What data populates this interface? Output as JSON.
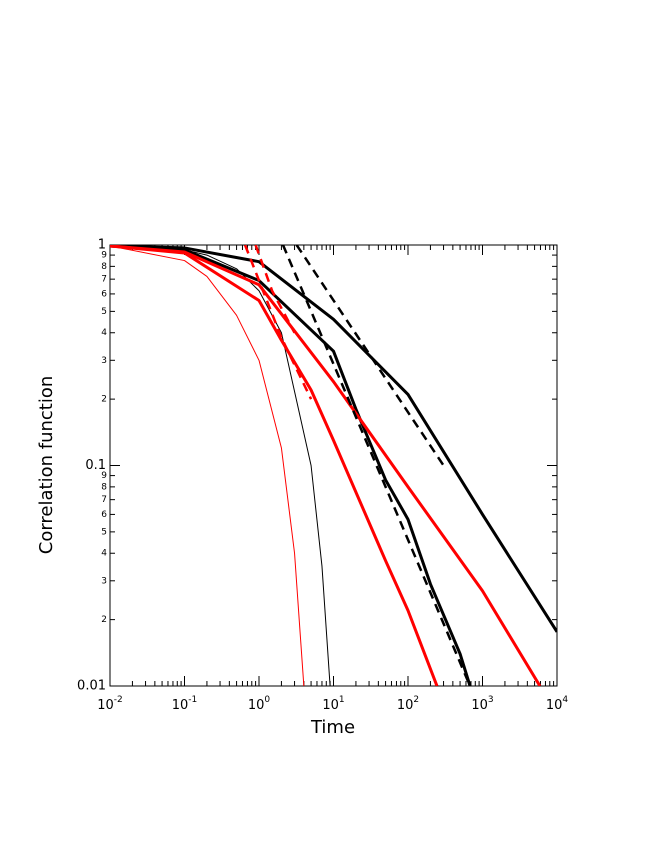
{
  "chart_data": {
    "type": "line",
    "x_label": "Time",
    "y_label": "Correlation function",
    "log_x": true,
    "log_y": true,
    "xlim": [
      0.01,
      10000
    ],
    "ylim": [
      0.01,
      1
    ],
    "xticks": [
      {
        "value": 0.01,
        "label": "10",
        "exponent": "-2"
      },
      {
        "value": 0.1,
        "label": "10",
        "exponent": "-1"
      },
      {
        "value": 1,
        "label": "10",
        "exponent": "0"
      },
      {
        "value": 10,
        "label": "10",
        "exponent": "1"
      },
      {
        "value": 100,
        "label": "10",
        "exponent": "2"
      },
      {
        "value": 1000,
        "label": "10",
        "exponent": "3"
      },
      {
        "value": 10000,
        "label": "10",
        "exponent": "4"
      }
    ],
    "xminorticks": [
      0.02,
      0.03,
      0.04,
      0.05,
      0.06,
      0.07,
      0.08,
      0.09,
      0.2,
      0.3,
      0.4,
      0.5,
      0.6,
      0.7,
      0.8,
      0.9,
      2,
      3,
      4,
      5,
      6,
      7,
      8,
      9,
      20,
      30,
      40,
      50,
      60,
      70,
      80,
      90,
      200,
      300,
      400,
      500,
      600,
      700,
      800,
      900,
      2000,
      3000,
      4000,
      5000,
      6000,
      7000,
      8000,
      9000
    ],
    "yticks": [
      1,
      {
        "value": 0.9,
        "label": "9"
      },
      {
        "value": 0.8,
        "label": "8"
      },
      {
        "value": 0.7,
        "label": "7"
      },
      {
        "value": 0.6,
        "label": "6"
      },
      {
        "value": 0.5,
        "label": "5"
      },
      {
        "value": 0.4,
        "label": "4"
      },
      {
        "value": 0.3,
        "label": "3"
      },
      {
        "value": 0.2,
        "label": "2"
      },
      0.1,
      {
        "value": 0.09,
        "label": "9"
      },
      {
        "value": 0.08,
        "label": "8"
      },
      {
        "value": 0.07,
        "label": "7"
      },
      {
        "value": 0.06,
        "label": "6"
      },
      {
        "value": 0.05,
        "label": "5"
      },
      {
        "value": 0.04,
        "label": "4"
      },
      {
        "value": 0.03,
        "label": "3"
      },
      {
        "value": 0.02,
        "label": "2"
      },
      0.01
    ],
    "series": [
      {
        "color": "#ff0000",
        "width": 1,
        "dash": false,
        "x": [
          0.01,
          0.1,
          0.2,
          0.5,
          1,
          2,
          3,
          4
        ],
        "values": [
          0.99,
          0.85,
          0.72,
          0.48,
          0.3,
          0.12,
          0.04,
          0.01
        ]
      },
      {
        "color": "#000000",
        "width": 1,
        "dash": false,
        "x": [
          0.01,
          0.1,
          0.2,
          0.5,
          1,
          2,
          5,
          7,
          9
        ],
        "values": [
          0.99,
          0.95,
          0.9,
          0.78,
          0.62,
          0.4,
          0.1,
          0.035,
          0.01
        ]
      },
      {
        "color": "#000000",
        "width": 3,
        "dash": false,
        "x": [
          0.01,
          0.1,
          1,
          10,
          100,
          1000,
          10000
        ],
        "values": [
          0.99,
          0.97,
          0.84,
          0.46,
          0.21,
          0.06,
          0.0176
        ]
      },
      {
        "color": "#000000",
        "width": 3,
        "dash": false,
        "x": [
          0.01,
          0.1,
          1,
          10,
          20,
          50,
          100,
          200,
          500,
          680
        ],
        "values": [
          0.99,
          0.95,
          0.69,
          0.33,
          0.18,
          0.086,
          0.057,
          0.029,
          0.014,
          0.01
        ]
      },
      {
        "color": "#ff0000",
        "width": 3,
        "dash": false,
        "x": [
          0.01,
          0.1,
          1,
          10,
          100,
          1000,
          5900
        ],
        "values": [
          0.99,
          0.93,
          0.66,
          0.24,
          0.08,
          0.027,
          0.01
        ]
      },
      {
        "color": "#ff0000",
        "width": 3,
        "dash": false,
        "x": [
          0.01,
          0.1,
          1,
          2,
          5,
          10,
          50,
          100,
          245
        ],
        "values": [
          0.99,
          0.92,
          0.56,
          0.37,
          0.22,
          0.13,
          0.037,
          0.022,
          0.01
        ]
      },
      {
        "color": "#000000",
        "width": 2.5,
        "dash": true,
        "x": [
          3.2,
          300
        ],
        "values": [
          1,
          0.1
        ]
      },
      {
        "color": "#000000",
        "width": 2.5,
        "dash": true,
        "x": [
          2.1,
          680
        ],
        "values": [
          1,
          0.01
        ]
      },
      {
        "color": "#ff0000",
        "width": 2.5,
        "dash": true,
        "x": [
          0.65,
          2,
          5
        ],
        "values": [
          1,
          0.38,
          0.2
        ]
      },
      {
        "color": "#ff0000",
        "width": 2.5,
        "dash": true,
        "x": [
          0.9,
          1.5,
          3
        ],
        "values": [
          1,
          0.62,
          0.4
        ]
      }
    ]
  }
}
